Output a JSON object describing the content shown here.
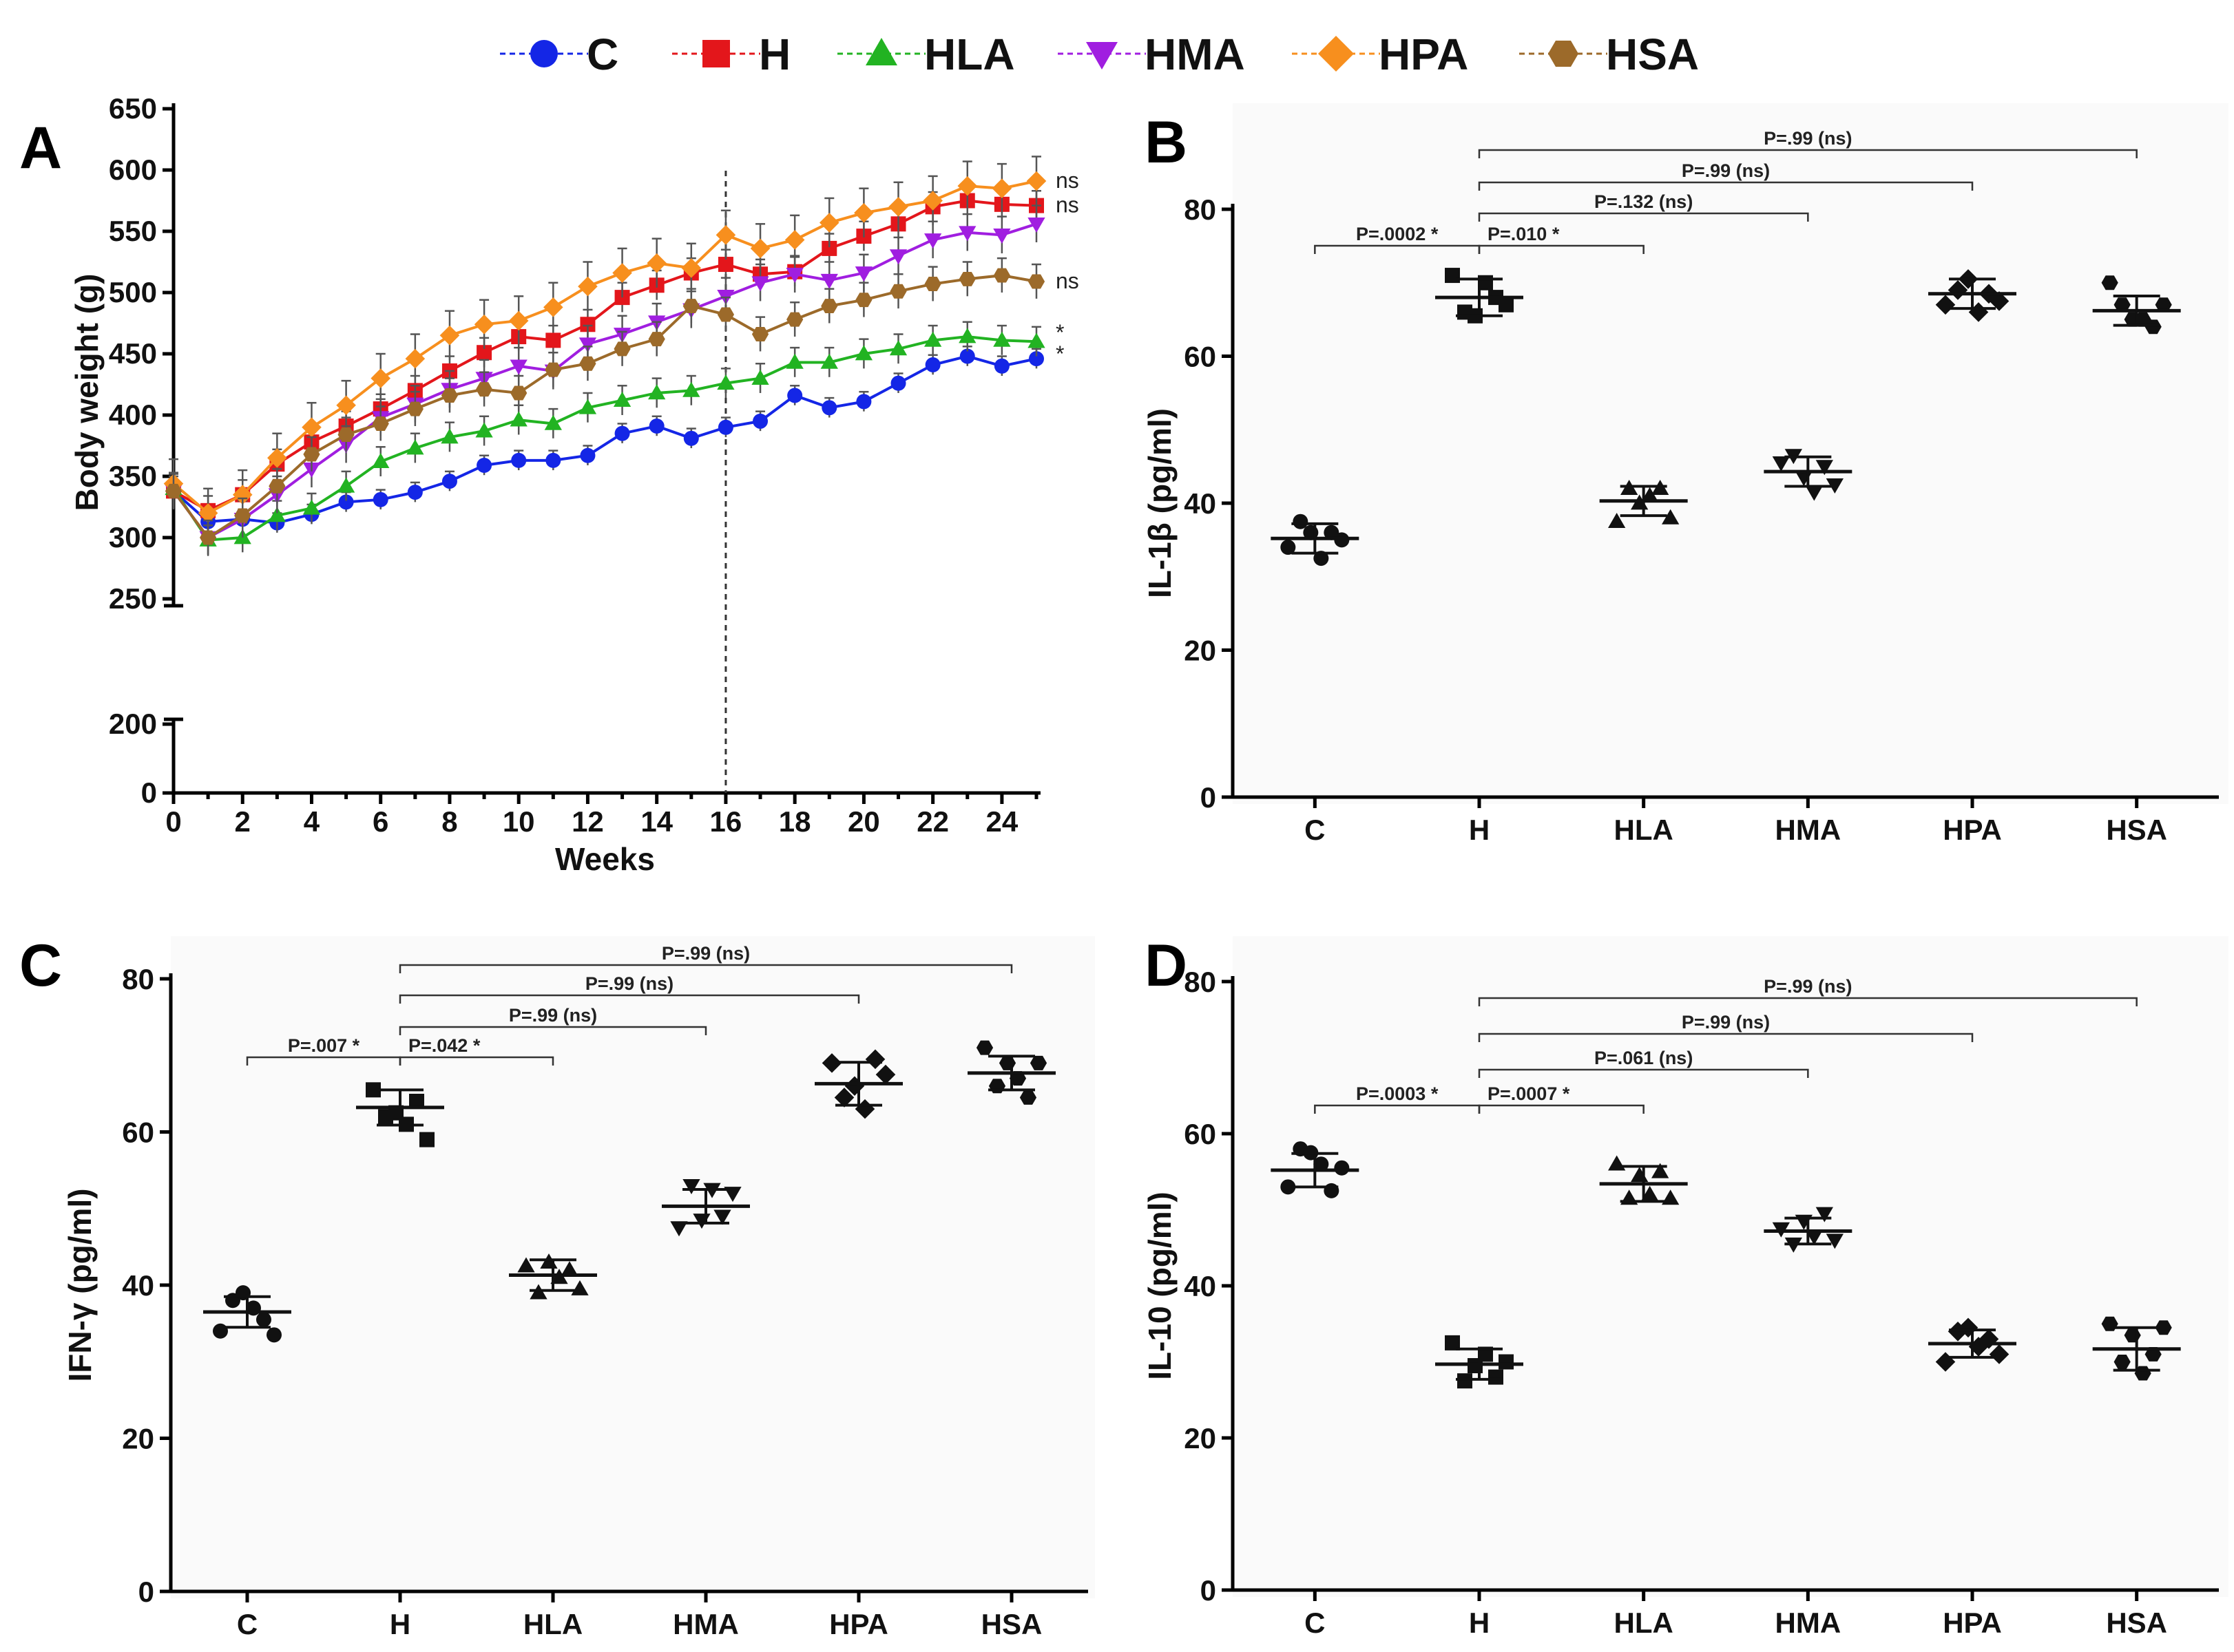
{
  "legend": [
    {
      "label": "C",
      "color": "#1426e6",
      "marker": "circle"
    },
    {
      "label": "H",
      "color": "#e3161b",
      "marker": "square"
    },
    {
      "label": "HLA",
      "color": "#22b322",
      "marker": "triangle-up"
    },
    {
      "label": "HMA",
      "color": "#a01ee0",
      "marker": "triangle-down"
    },
    {
      "label": "HPA",
      "color": "#f78f1e",
      "marker": "diamond"
    },
    {
      "label": "HSA",
      "color": "#9c6a2a",
      "marker": "hexagon"
    }
  ],
  "chart_data": [
    {
      "panel": "A",
      "type": "line",
      "xlabel": "Weeks",
      "ylabel": "Body weight (g)",
      "xlim": [
        0,
        25
      ],
      "ylim": [
        0,
        650
      ],
      "y_break": [
        210,
        240
      ],
      "x_ticks": [
        0,
        2,
        4,
        6,
        8,
        10,
        12,
        14,
        16,
        18,
        20,
        22,
        24
      ],
      "y_ticks": [
        0,
        200,
        250,
        300,
        350,
        400,
        450,
        500,
        550,
        600,
        650
      ],
      "vline_x": 16,
      "x": [
        0,
        1,
        2,
        3,
        4,
        5,
        6,
        7,
        8,
        9,
        10,
        11,
        12,
        13,
        14,
        15,
        16,
        17,
        18,
        19,
        20,
        21,
        22,
        23,
        24,
        25
      ],
      "series": [
        {
          "name": "C",
          "values": [
            338,
            313,
            315,
            312,
            319,
            329,
            331,
            337,
            346,
            359,
            363,
            363,
            367,
            385,
            391,
            381,
            390,
            395,
            416,
            406,
            411,
            426,
            441,
            448,
            440,
            446
          ],
          "err": 8
        },
        {
          "name": "H",
          "values": [
            338,
            322,
            335,
            360,
            378,
            391,
            405,
            420,
            436,
            451,
            464,
            461,
            474,
            496,
            506,
            516,
            523,
            515,
            517,
            536,
            546,
            556,
            570,
            575,
            572,
            571
          ],
          "err": 12
        },
        {
          "name": "HLA",
          "values": [
            340,
            298,
            300,
            318,
            324,
            342,
            362,
            373,
            382,
            387,
            396,
            393,
            406,
            412,
            418,
            420,
            426,
            430,
            443,
            443,
            450,
            454,
            461,
            464,
            461,
            460
          ],
          "err": 12
        },
        {
          "name": "HMA",
          "values": [
            338,
            300,
            315,
            335,
            356,
            376,
            398,
            409,
            421,
            430,
            440,
            436,
            458,
            466,
            476,
            486,
            497,
            508,
            515,
            510,
            516,
            530,
            543,
            549,
            547,
            556
          ],
          "err": 15
        },
        {
          "name": "HPA",
          "values": [
            344,
            320,
            335,
            365,
            390,
            408,
            430,
            446,
            465,
            474,
            477,
            488,
            505,
            516,
            524,
            520,
            547,
            536,
            543,
            557,
            565,
            570,
            575,
            587,
            585,
            591
          ],
          "err": 20
        },
        {
          "name": "HSA",
          "values": [
            338,
            300,
            318,
            342,
            368,
            384,
            393,
            405,
            416,
            421,
            418,
            437,
            442,
            454,
            462,
            489,
            482,
            466,
            478,
            489,
            494,
            501,
            507,
            511,
            514,
            509
          ],
          "err": 14
        }
      ],
      "end_labels": [
        {
          "series": "HPA",
          "text": "ns"
        },
        {
          "series": "H",
          "text": "ns"
        },
        {
          "series": "HSA",
          "text": "ns"
        },
        {
          "series": "HLA",
          "text": "*"
        },
        {
          "series": "C",
          "text": "*"
        }
      ]
    },
    {
      "panel": "B",
      "type": "scatter",
      "ylabel": "IL-1β (pg/ml)",
      "ylim": [
        0,
        80
      ],
      "y_ticks": [
        0,
        20,
        40,
        60,
        80
      ],
      "categories": [
        "C",
        "H",
        "HLA",
        "HMA",
        "HPA",
        "HSA"
      ],
      "points": [
        [
          34,
          37.5,
          36,
          32.5,
          36,
          35
        ],
        [
          71,
          66,
          65.5,
          70,
          68,
          67
        ],
        [
          37.5,
          42,
          40,
          41,
          42,
          38
        ],
        [
          45.5,
          46.5,
          43.5,
          41.5,
          45,
          42.5
        ],
        [
          67,
          69,
          70.5,
          66,
          68.5,
          67.5
        ],
        [
          70,
          67,
          65,
          65,
          64,
          67
        ]
      ],
      "means": [
        35.2,
        68.0,
        40.3,
        44.3,
        68.5,
        66.2
      ],
      "sds": [
        2.0,
        2.5,
        2.0,
        2.0,
        2.0,
        2.0
      ],
      "comparisons": [
        {
          "from": "C",
          "to": "H",
          "label": "P=.0002 *"
        },
        {
          "from": "H",
          "to": "HLA",
          "label": "P=.010 *"
        },
        {
          "from": "H",
          "to": "HMA",
          "label": "P=.132 (ns)"
        },
        {
          "from": "H",
          "to": "HPA",
          "label": "P=.99 (ns)"
        },
        {
          "from": "H",
          "to": "HSA",
          "label": "P=.99 (ns)"
        }
      ]
    },
    {
      "panel": "C",
      "type": "scatter",
      "ylabel": "IFN-γ (pg/ml)",
      "ylim": [
        0,
        80
      ],
      "y_ticks": [
        0,
        20,
        40,
        60,
        80
      ],
      "categories": [
        "C",
        "H",
        "HLA",
        "HMA",
        "HPA",
        "HSA"
      ],
      "points": [
        [
          34,
          38,
          39,
          37,
          35.5,
          33.5
        ],
        [
          65.5,
          62,
          62.5,
          61,
          64,
          59
        ],
        [
          42.5,
          39,
          43,
          41,
          42,
          39.5
        ],
        [
          47.5,
          53,
          48.5,
          52.5,
          49,
          52
        ],
        [
          69,
          64.5,
          66,
          63,
          69.5,
          67.5
        ],
        [
          71,
          66,
          69,
          67,
          64.5,
          69
        ]
      ],
      "means": [
        36.5,
        63.2,
        41.3,
        50.3,
        66.3,
        67.7
      ],
      "sds": [
        2.0,
        2.3,
        2.0,
        2.2,
        2.8,
        2.2
      ],
      "comparisons": [
        {
          "from": "C",
          "to": "H",
          "label": "P=.007 *"
        },
        {
          "from": "H",
          "to": "HLA",
          "label": "P=.042 *"
        },
        {
          "from": "H",
          "to": "HMA",
          "label": "P=.99 (ns)"
        },
        {
          "from": "H",
          "to": "HPA",
          "label": "P=.99 (ns)"
        },
        {
          "from": "H",
          "to": "HSA",
          "label": "P=.99 (ns)"
        }
      ]
    },
    {
      "panel": "D",
      "type": "scatter",
      "ylabel": "IL-10 (pg/ml)",
      "ylim": [
        0,
        80
      ],
      "y_ticks": [
        0,
        20,
        40,
        60,
        80
      ],
      "categories": [
        "C",
        "H",
        "HLA",
        "HMA",
        "HPA",
        "HSA"
      ],
      "points": [
        [
          53,
          58,
          57.5,
          56,
          52.5,
          55.5
        ],
        [
          32.5,
          27.5,
          29.5,
          31,
          28,
          30
        ],
        [
          56,
          51.5,
          54.5,
          52,
          55,
          51.5
        ],
        [
          47.5,
          45.5,
          48.5,
          46.5,
          49.5,
          46
        ],
        [
          30,
          34,
          34.5,
          32,
          33,
          31
        ],
        [
          35,
          30,
          33.5,
          28.5,
          31,
          34.5
        ]
      ],
      "means": [
        55.2,
        29.7,
        53.4,
        47.2,
        32.4,
        31.7
      ],
      "sds": [
        2.2,
        2.0,
        2.3,
        1.7,
        1.8,
        2.8
      ],
      "comparisons": [
        {
          "from": "C",
          "to": "H",
          "label": "P=.0003 *"
        },
        {
          "from": "H",
          "to": "HLA",
          "label": "P=.0007 *"
        },
        {
          "from": "H",
          "to": "HMA",
          "label": "P=.061 (ns)"
        },
        {
          "from": "H",
          "to": "HPA",
          "label": "P=.99 (ns)"
        },
        {
          "from": "H",
          "to": "HSA",
          "label": "P=.99 (ns)"
        }
      ]
    }
  ]
}
